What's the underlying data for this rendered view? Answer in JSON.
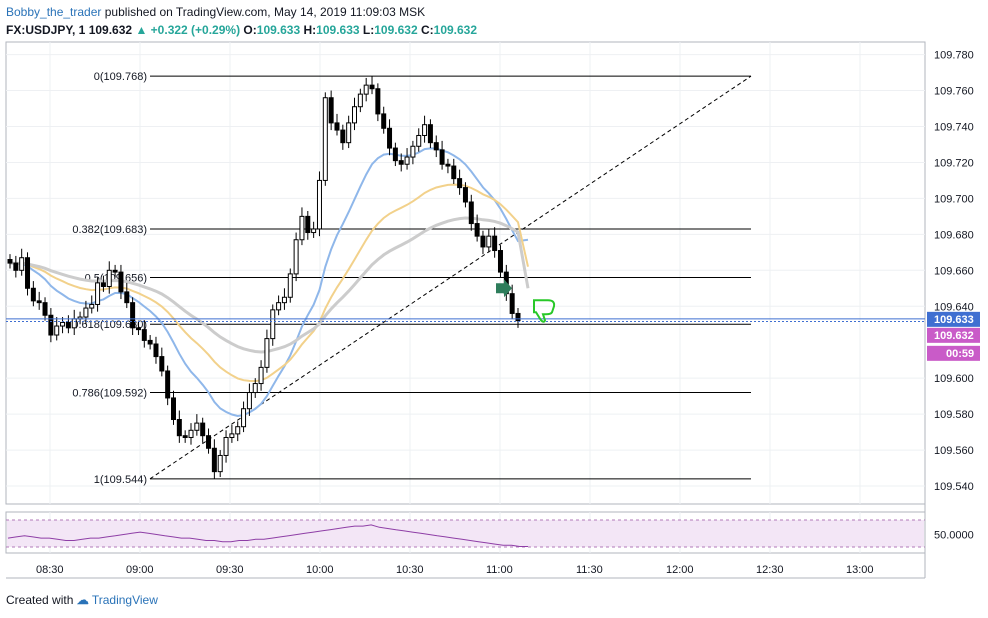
{
  "header": {
    "author": "Bobby_the_trader",
    "published": "published on TradingView.com, May 14, 2019 11:09:03 MSK"
  },
  "ohlc": {
    "symbol": "FX:USDJPY, 1",
    "last": "109.632",
    "change": "+0.322 (+0.29%)",
    "o_label": "O:",
    "o": "109.633",
    "h_label": "H:",
    "h": "109.633",
    "l_label": "L:",
    "l": "109.632",
    "c_label": "C:",
    "c": "109.632"
  },
  "footer": {
    "created_with": "Created with",
    "brand": "TradingView"
  },
  "colors": {
    "up": "#ffffff",
    "down": "#000000",
    "wick": "#000000",
    "fib": "#000000",
    "ma_blue": "#8fb7ea",
    "ma_orange": "#f2d18b",
    "ma_gray": "#cccccc",
    "price_line": "#3f6fd1",
    "rsi": "#8e3ea6",
    "rsi_band": "#f3e6f6",
    "badge_blue": "#3f6fd1",
    "badge_pink": "#c95bc8",
    "arrow_green": "#2e7d5b",
    "thumb_green": "#28c828"
  },
  "chart_data": [
    {
      "type": "candlestick",
      "title": "",
      "x_ticks": [
        "08:30",
        "09:00",
        "09:30",
        "10:00",
        "10:30",
        "11:00",
        "11:30",
        "12:00",
        "12:30",
        "13:00"
      ],
      "y_ticks": [
        "109.780",
        "109.760",
        "109.740",
        "109.720",
        "109.700",
        "109.680",
        "109.660",
        "109.640",
        "109.600",
        "109.580",
        "109.560",
        "109.540"
      ],
      "ylim": [
        109.53,
        109.787
      ],
      "candle_closes": [
        109.664,
        109.66,
        109.667,
        109.65,
        109.643,
        109.642,
        109.635,
        109.624,
        109.629,
        109.631,
        109.628,
        109.633,
        109.634,
        109.639,
        109.641,
        109.653,
        109.651,
        109.66,
        109.659,
        109.648,
        109.642,
        109.628,
        109.627,
        109.621,
        109.619,
        109.612,
        109.604,
        109.589,
        109.577,
        109.568,
        109.567,
        109.571,
        109.575,
        109.568,
        109.561,
        109.548,
        109.557,
        109.567,
        109.569,
        109.573,
        109.583,
        109.592,
        109.597,
        109.606,
        109.622,
        109.638,
        109.642,
        109.645,
        109.658,
        109.677,
        109.69,
        109.681,
        109.683,
        109.71,
        109.756,
        109.742,
        109.738,
        109.731,
        109.742,
        109.751,
        109.758,
        109.763,
        109.761,
        109.747,
        109.739,
        109.728,
        109.721,
        109.719,
        109.723,
        109.729,
        109.735,
        109.741,
        109.731,
        109.727,
        109.719,
        109.718,
        109.711,
        109.706,
        109.698,
        109.686,
        109.679,
        109.673,
        109.679,
        109.671,
        109.659,
        109.647,
        109.636,
        109.632
      ],
      "ma_blue_end": 109.677,
      "ma_orange_end": 109.662,
      "ma_gray_end": 109.65,
      "fib_levels": [
        {
          "label": "0(109.768)",
          "value": 109.768
        },
        {
          "label": "0.382(109.683)",
          "value": 109.683
        },
        {
          "label": "0.5(109.656)",
          "value": 109.656
        },
        {
          "label": "0.618(109.630)",
          "value": 109.63
        },
        {
          "label": "0.786(109.592)",
          "value": 109.592
        },
        {
          "label": "1(109.544)",
          "value": 109.544
        }
      ],
      "price_badges": [
        {
          "text": "109.633",
          "color": "#3f6fd1"
        },
        {
          "text": "109.632",
          "color": "#c95bc8"
        },
        {
          "text": "00:59",
          "color": "#c95bc8"
        }
      ]
    },
    {
      "type": "line",
      "title": "",
      "y_ticks": [
        "50.0000"
      ],
      "series": [
        {
          "values": [
            47,
            48,
            49,
            48,
            47,
            47,
            46,
            45,
            45,
            46,
            47,
            47,
            48,
            49,
            50,
            51,
            52,
            51,
            50,
            49,
            48,
            47,
            47,
            46,
            45,
            45,
            44,
            44,
            45,
            45,
            46,
            46,
            47,
            48,
            49,
            50,
            51,
            52,
            53,
            54,
            55,
            56,
            57,
            57,
            58,
            56,
            55,
            54,
            53,
            52,
            51,
            50,
            49,
            48,
            47,
            46,
            45,
            44,
            43,
            42,
            41,
            41,
            40,
            40
          ]
        }
      ]
    }
  ]
}
